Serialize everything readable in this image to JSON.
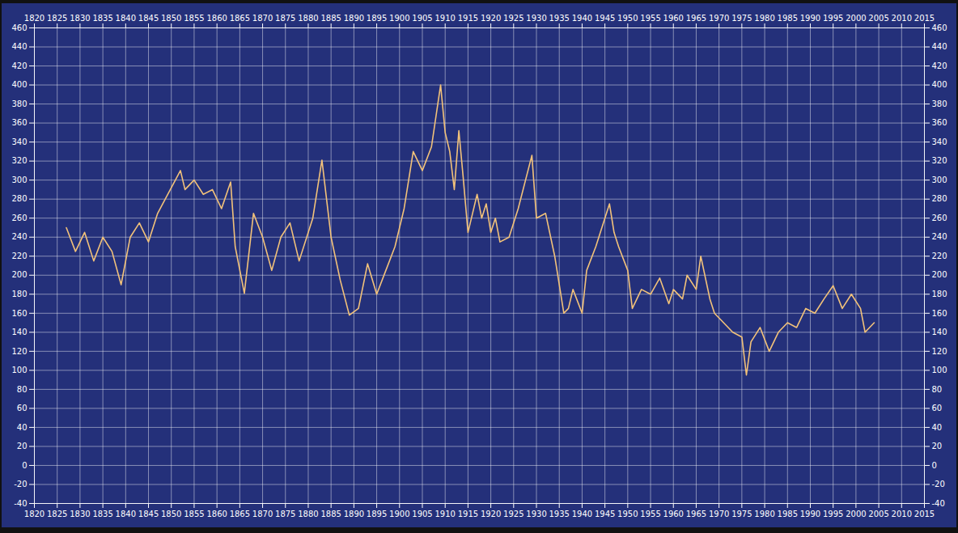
{
  "chart_data": {
    "type": "line",
    "x": [
      1827,
      1829,
      1831,
      1833,
      1835,
      1837,
      1839,
      1841,
      1843,
      1845,
      1847,
      1852,
      1853,
      1855,
      1857,
      1859,
      1861,
      1863,
      1864,
      1866,
      1868,
      1870,
      1872,
      1874,
      1876,
      1878,
      1881,
      1883,
      1885,
      1887,
      1889,
      1891,
      1893,
      1895,
      1897,
      1899,
      1901,
      1903,
      1905,
      1907,
      1909,
      1910,
      1911,
      1912,
      1913,
      1914,
      1915,
      1916,
      1917,
      1918,
      1919,
      1920,
      1921,
      1922,
      1924,
      1926,
      1929,
      1930,
      1932,
      1934,
      1936,
      1937,
      1938,
      1940,
      1941,
      1943,
      1946,
      1947,
      1948,
      1950,
      1951,
      1953,
      1955,
      1957,
      1959,
      1960,
      1962,
      1963,
      1965,
      1966,
      1968,
      1969,
      1971,
      1973,
      1975,
      1976,
      1977,
      1979,
      1981,
      1983,
      1985,
      1987,
      1989,
      1991,
      1993,
      1995,
      1997,
      1999,
      2001,
      2002,
      2004
    ],
    "values": [
      250,
      225,
      245,
      215,
      240,
      225,
      190,
      240,
      255,
      235,
      265,
      310,
      290,
      300,
      285,
      290,
      270,
      298,
      230,
      181,
      265,
      240,
      205,
      240,
      255,
      215,
      260,
      321,
      240,
      195,
      158,
      165,
      212,
      180,
      205,
      230,
      270,
      330,
      310,
      335,
      400,
      350,
      330,
      290,
      352,
      300,
      245,
      265,
      285,
      260,
      275,
      245,
      260,
      235,
      240,
      270,
      326,
      260,
      265,
      220,
      160,
      165,
      185,
      160,
      205,
      230,
      275,
      245,
      230,
      205,
      165,
      185,
      180,
      197,
      170,
      185,
      175,
      200,
      185,
      220,
      175,
      160,
      150,
      140,
      135,
      95,
      130,
      145,
      120,
      140,
      150,
      145,
      165,
      160,
      175,
      189,
      165,
      180,
      165,
      140,
      150
    ],
    "color": "#f2c27a",
    "xlim": [
      1820,
      2015
    ],
    "xticks": [
      1820,
      1825,
      1830,
      1835,
      1840,
      1845,
      1850,
      1855,
      1860,
      1865,
      1870,
      1875,
      1880,
      1885,
      1890,
      1895,
      1900,
      1905,
      1910,
      1915,
      1920,
      1925,
      1930,
      1935,
      1940,
      1945,
      1950,
      1955,
      1960,
      1965,
      1970,
      1975,
      1980,
      1985,
      1990,
      1995,
      2000,
      2005,
      2010,
      2015
    ],
    "ylim": [
      -40,
      460
    ],
    "yticks": [
      -40,
      -20,
      0,
      20,
      40,
      60,
      80,
      100,
      120,
      140,
      160,
      180,
      200,
      220,
      240,
      260,
      280,
      300,
      320,
      340,
      360,
      380,
      400,
      420,
      440,
      460
    ],
    "grid": true
  }
}
